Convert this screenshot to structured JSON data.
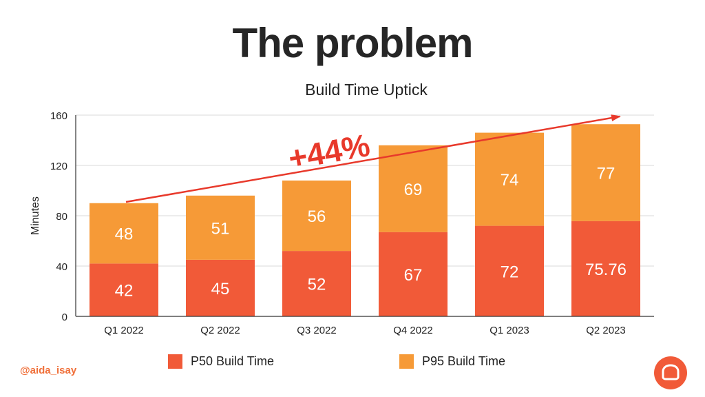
{
  "slide": {
    "title": "The problem",
    "handle": "@aida_isay"
  },
  "chart_data": {
    "type": "bar",
    "stacked": true,
    "title": "Build Time Uptick",
    "ylabel": "Minutes",
    "xlabel": "",
    "ylim": [
      0,
      160
    ],
    "yticks": [
      0,
      40,
      80,
      120,
      160
    ],
    "categories": [
      "Q1 2022",
      "Q2 2022",
      "Q3 2022",
      "Q4 2022",
      "Q1 2023",
      "Q2 2023"
    ],
    "series": [
      {
        "name": "P50 Build Time",
        "color": "#f15a38",
        "values": [
          42,
          45,
          52,
          67,
          72,
          75.76
        ]
      },
      {
        "name": "P95 Build Time",
        "color": "#f69a37",
        "values": [
          48,
          51,
          56,
          69,
          74,
          77
        ]
      }
    ],
    "annotation": {
      "text": "+44%",
      "color": "#e8392b",
      "type": "trend-arrow"
    },
    "grid": true,
    "legend": "bottom"
  },
  "colors": {
    "accent": "#f15a38",
    "handle": "#f0703a"
  },
  "icons": {
    "logo": "chat-bubble-logo-icon"
  }
}
